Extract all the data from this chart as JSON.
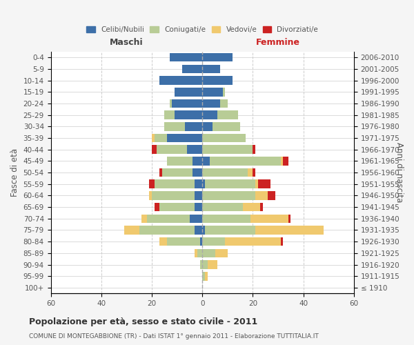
{
  "age_groups": [
    "100+",
    "95-99",
    "90-94",
    "85-89",
    "80-84",
    "75-79",
    "70-74",
    "65-69",
    "60-64",
    "55-59",
    "50-54",
    "45-49",
    "40-44",
    "35-39",
    "30-34",
    "25-29",
    "20-24",
    "15-19",
    "10-14",
    "5-9",
    "0-4"
  ],
  "birth_years": [
    "≤ 1910",
    "1911-1915",
    "1916-1920",
    "1921-1925",
    "1926-1930",
    "1931-1935",
    "1936-1940",
    "1941-1945",
    "1946-1950",
    "1951-1955",
    "1956-1960",
    "1961-1965",
    "1966-1970",
    "1971-1975",
    "1976-1980",
    "1981-1985",
    "1986-1990",
    "1991-1995",
    "1996-2000",
    "2001-2005",
    "2006-2010"
  ],
  "maschi": {
    "celibi": [
      0,
      0,
      0,
      0,
      1,
      3,
      5,
      3,
      3,
      3,
      4,
      4,
      6,
      14,
      7,
      11,
      12,
      11,
      17,
      8,
      13
    ],
    "coniugati": [
      0,
      0,
      1,
      2,
      13,
      22,
      17,
      14,
      17,
      16,
      12,
      10,
      12,
      5,
      8,
      4,
      1,
      0,
      0,
      0,
      0
    ],
    "vedovi": [
      0,
      0,
      0,
      1,
      3,
      6,
      2,
      0,
      1,
      0,
      0,
      0,
      0,
      1,
      0,
      0,
      0,
      0,
      0,
      0,
      0
    ],
    "divorziati": [
      0,
      0,
      0,
      0,
      0,
      0,
      0,
      2,
      0,
      2,
      1,
      0,
      2,
      0,
      0,
      0,
      0,
      0,
      0,
      0,
      0
    ]
  },
  "femmine": {
    "nubili": [
      0,
      0,
      0,
      0,
      0,
      1,
      0,
      0,
      0,
      1,
      0,
      3,
      0,
      0,
      4,
      6,
      7,
      8,
      12,
      7,
      12
    ],
    "coniugate": [
      0,
      1,
      2,
      5,
      9,
      20,
      19,
      16,
      21,
      20,
      18,
      28,
      20,
      17,
      11,
      8,
      3,
      1,
      0,
      0,
      0
    ],
    "vedove": [
      0,
      1,
      4,
      5,
      22,
      27,
      15,
      7,
      5,
      1,
      2,
      1,
      0,
      0,
      0,
      0,
      0,
      0,
      0,
      0,
      0
    ],
    "divorziate": [
      0,
      0,
      0,
      0,
      1,
      0,
      1,
      1,
      3,
      5,
      1,
      2,
      1,
      0,
      0,
      0,
      0,
      0,
      0,
      0,
      0
    ]
  },
  "colors": {
    "celibi_nubili": "#3d6fa8",
    "coniugati": "#b8cc96",
    "vedovi": "#f0c96e",
    "divorziati": "#cc2222"
  },
  "xlim": 60,
  "title_main": "Popolazione per età, sesso e stato civile - 2011",
  "title_sub": "COMUNE DI MONTEGABBIONE (TR) - Dati ISTAT 1° gennaio 2011 - Elaborazione TUTTITALIA.IT",
  "ylabel_left": "Fasce di età",
  "ylabel_right": "Anni di nascita",
  "xlabel_left": "Maschi",
  "xlabel_right": "Femmine",
  "legend_labels": [
    "Celibi/Nubili",
    "Coniugati/e",
    "Vedovi/e",
    "Divorziati/e"
  ],
  "bg_color": "#f5f5f5",
  "plot_bg": "#ffffff"
}
